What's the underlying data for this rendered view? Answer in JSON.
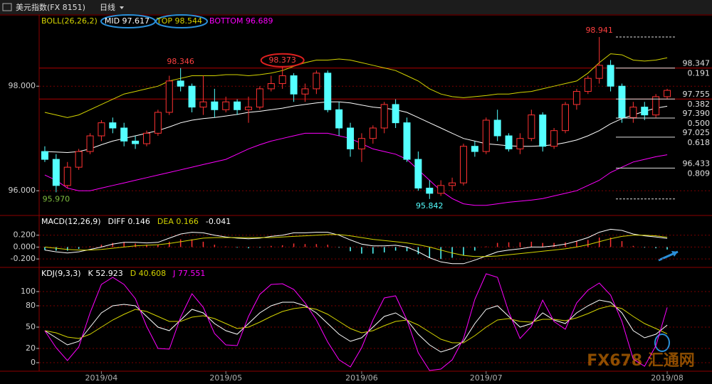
{
  "header": {
    "title": "美元指数(FX 8151)",
    "period": "日线"
  },
  "watermark": "FX678 汇通网",
  "chart_data": [
    {
      "type": "candlestick",
      "title": "BOLL(26,26,2)",
      "title_color": "#d4d400",
      "up_color": "#ff3232",
      "down_color": "#54ffff",
      "open": [
        96.75,
        96.6,
        96.1,
        96.45,
        96.75,
        97.05,
        97.3,
        97.2,
        96.95,
        96.9,
        97.1,
        97.5,
        98.1,
        98.0,
        97.6,
        97.7,
        97.55,
        97.7,
        97.55,
        97.6,
        97.95,
        98.05,
        98.2,
        97.85,
        97.95,
        98.25,
        97.55,
        97.2,
        96.8,
        97.0,
        97.2,
        97.65,
        97.3,
        96.6,
        96.05,
        95.95,
        96.1,
        96.15,
        96.85,
        96.75,
        97.35,
        97.05,
        96.8,
        97.0,
        97.45,
        96.85,
        97.15,
        97.65,
        97.9,
        98.15,
        98.4,
        98.0,
        97.4,
        97.6,
        97.45,
        97.8
      ],
      "high": [
        96.85,
        96.7,
        96.55,
        96.8,
        97.1,
        97.35,
        97.4,
        97.3,
        97.05,
        97.15,
        97.55,
        98.2,
        98.346,
        98.05,
        98.2,
        97.95,
        97.8,
        97.75,
        97.8,
        98.0,
        98.2,
        98.373,
        98.25,
        98.05,
        98.3,
        98.3,
        97.7,
        97.3,
        97.1,
        97.25,
        97.7,
        97.75,
        97.4,
        96.75,
        96.2,
        96.2,
        96.25,
        96.9,
        96.95,
        97.4,
        97.55,
        97.1,
        97.1,
        97.55,
        97.5,
        97.2,
        97.7,
        97.95,
        98.2,
        98.941,
        98.5,
        98.05,
        97.7,
        97.7,
        97.85,
        97.95
      ],
      "low": [
        96.55,
        95.97,
        96.05,
        96.4,
        96.7,
        96.95,
        97.1,
        96.85,
        96.8,
        96.85,
        97.05,
        97.45,
        97.9,
        97.5,
        97.45,
        97.4,
        97.5,
        97.45,
        97.3,
        97.55,
        97.9,
        97.95,
        97.7,
        97.7,
        97.85,
        97.5,
        97.05,
        96.65,
        96.55,
        96.9,
        97.1,
        97.2,
        96.55,
        96.0,
        95.842,
        95.9,
        96.0,
        96.1,
        96.65,
        96.7,
        96.95,
        96.75,
        96.7,
        96.95,
        96.75,
        96.8,
        97.1,
        97.55,
        97.85,
        98.05,
        97.9,
        97.3,
        97.3,
        97.35,
        97.4,
        97.75
      ],
      "close": [
        96.6,
        96.1,
        96.45,
        96.75,
        97.05,
        97.3,
        97.2,
        96.95,
        96.9,
        97.1,
        97.5,
        98.1,
        98.0,
        97.6,
        97.7,
        97.55,
        97.7,
        97.55,
        97.6,
        97.95,
        98.05,
        98.2,
        97.85,
        97.95,
        98.25,
        97.55,
        97.2,
        96.8,
        97.0,
        97.2,
        97.65,
        97.3,
        96.6,
        96.05,
        95.95,
        96.1,
        96.15,
        96.85,
        96.75,
        97.35,
        97.05,
        96.8,
        97.0,
        97.45,
        96.85,
        97.15,
        97.65,
        97.9,
        98.15,
        98.4,
        98.0,
        97.4,
        97.6,
        97.45,
        97.8,
        97.92
      ],
      "series": [
        {
          "name": "MID 97.617",
          "color": "#ffffff",
          "values": [
            96.75,
            96.74,
            96.73,
            96.75,
            96.8,
            96.88,
            96.95,
            97.0,
            97.05,
            97.1,
            97.15,
            97.22,
            97.3,
            97.35,
            97.38,
            97.4,
            97.43,
            97.46,
            97.5,
            97.52,
            97.55,
            97.58,
            97.62,
            97.65,
            97.68,
            97.7,
            97.7,
            97.68,
            97.64,
            97.6,
            97.58,
            97.55,
            97.5,
            97.4,
            97.3,
            97.2,
            97.1,
            97.0,
            96.95,
            96.9,
            96.88,
            96.86,
            96.85,
            96.85,
            96.86,
            96.88,
            96.92,
            96.97,
            97.05,
            97.15,
            97.28,
            97.38,
            97.45,
            97.52,
            97.58,
            97.617
          ]
        },
        {
          "name": "TOP 98.544",
          "color": "#d4d400",
          "values": [
            97.5,
            97.45,
            97.4,
            97.45,
            97.55,
            97.65,
            97.75,
            97.85,
            97.9,
            97.95,
            98.0,
            98.1,
            98.15,
            98.2,
            98.2,
            98.2,
            98.22,
            98.22,
            98.2,
            98.22,
            98.25,
            98.3,
            98.38,
            98.45,
            98.5,
            98.5,
            98.52,
            98.5,
            98.45,
            98.4,
            98.35,
            98.3,
            98.2,
            98.1,
            97.95,
            97.85,
            97.8,
            97.78,
            97.8,
            97.82,
            97.85,
            97.85,
            97.88,
            97.9,
            97.95,
            98.0,
            98.05,
            98.1,
            98.25,
            98.45,
            98.62,
            98.6,
            98.5,
            98.48,
            98.5,
            98.544
          ]
        },
        {
          "name": "BOTTOM 96.689",
          "color": "#ff00ff",
          "values": [
            96.3,
            96.2,
            96.05,
            96.0,
            96.0,
            96.05,
            96.1,
            96.15,
            96.2,
            96.25,
            96.3,
            96.35,
            96.4,
            96.45,
            96.5,
            96.55,
            96.6,
            96.7,
            96.8,
            96.88,
            96.95,
            97.0,
            97.05,
            97.1,
            97.1,
            97.1,
            97.05,
            97.0,
            96.9,
            96.8,
            96.75,
            96.7,
            96.6,
            96.4,
            96.2,
            96.0,
            95.85,
            95.75,
            95.72,
            95.72,
            95.75,
            95.78,
            95.8,
            95.82,
            95.85,
            95.9,
            95.95,
            96.0,
            96.1,
            96.2,
            96.35,
            96.45,
            96.55,
            96.6,
            96.65,
            96.689
          ]
        }
      ],
      "ylim": [
        95.54,
        99.35
      ],
      "yticks": [
        {
          "value": 96,
          "label": "96.000"
        },
        {
          "value": 98,
          "label": "98.000"
        }
      ],
      "grid": true,
      "annotations": [
        {
          "value": 98.346,
          "label": "98.346",
          "at": "high",
          "color": "#ff4040"
        },
        {
          "value": 98.373,
          "label": "98.373",
          "at": "high",
          "color": "#ff4040"
        },
        {
          "value": 98.941,
          "label": "98.941",
          "at": "high",
          "color": "#ff4040"
        },
        {
          "value": 95.842,
          "label": "95.842",
          "at": "low",
          "color": "#54ffff"
        },
        {
          "value": 95.97,
          "label": "95.970",
          "at": "low",
          "color": "#7fbf3f"
        }
      ],
      "reference_lines": [
        98.347,
        97.755
      ],
      "levels": [
        {
          "value": 98.941
        },
        {
          "value": 98.347,
          "label": "98.347",
          "ratio": "0.191"
        },
        {
          "value": 97.755,
          "label": "97.755",
          "ratio": "0.382"
        },
        {
          "value": 97.39,
          "label": "97.390",
          "ratio": "0.500"
        },
        {
          "value": 97.025,
          "label": "97.025",
          "ratio": "0.618"
        },
        {
          "value": 96.433,
          "label": "96.433",
          "ratio": "0.809"
        },
        {
          "value": 95.842
        }
      ]
    },
    {
      "type": "combo",
      "title": "MACD(12,26,9)",
      "title_color": "#ffffff",
      "up_color": "#ff3232",
      "down_color": "#54ffff",
      "series": [
        {
          "name": "DIFF 0.146",
          "type": "line",
          "color": "#ffffff",
          "values": [
            -0.05,
            -0.08,
            -0.1,
            -0.08,
            -0.04,
            0.0,
            0.05,
            0.08,
            0.08,
            0.07,
            0.08,
            0.15,
            0.22,
            0.25,
            0.24,
            0.2,
            0.17,
            0.15,
            0.14,
            0.15,
            0.18,
            0.2,
            0.24,
            0.24,
            0.25,
            0.25,
            0.2,
            0.12,
            0.05,
            0.02,
            0.02,
            0.03,
            0.0,
            -0.08,
            -0.18,
            -0.25,
            -0.28,
            -0.28,
            -0.22,
            -0.15,
            -0.08,
            -0.05,
            -0.03,
            0.0,
            0.0,
            0.02,
            0.05,
            0.1,
            0.16,
            0.25,
            0.3,
            0.28,
            0.22,
            0.19,
            0.17,
            0.146
          ]
        },
        {
          "name": "DEA 0.166",
          "type": "line",
          "color": "#d4d400",
          "values": [
            0.0,
            -0.02,
            -0.04,
            -0.05,
            -0.05,
            -0.04,
            -0.02,
            0.0,
            0.02,
            0.03,
            0.04,
            0.06,
            0.09,
            0.12,
            0.15,
            0.16,
            0.16,
            0.16,
            0.16,
            0.16,
            0.16,
            0.17,
            0.18,
            0.19,
            0.2,
            0.21,
            0.21,
            0.19,
            0.16,
            0.13,
            0.11,
            0.09,
            0.07,
            0.04,
            0.0,
            -0.05,
            -0.1,
            -0.14,
            -0.16,
            -0.16,
            -0.15,
            -0.13,
            -0.11,
            -0.09,
            -0.07,
            -0.05,
            -0.03,
            0.0,
            0.04,
            0.09,
            0.14,
            0.18,
            0.2,
            0.2,
            0.19,
            0.166
          ]
        },
        {
          "name": "-0.041",
          "type": "bar",
          "color": "#ffffff",
          "values": [
            -0.05,
            -0.06,
            -0.06,
            -0.03,
            0.01,
            0.04,
            0.07,
            0.08,
            0.06,
            0.04,
            0.04,
            0.09,
            0.13,
            0.13,
            0.09,
            0.04,
            0.01,
            -0.01,
            -0.02,
            -0.01,
            0.02,
            0.03,
            0.06,
            0.05,
            0.05,
            0.04,
            -0.01,
            -0.07,
            -0.11,
            -0.11,
            -0.09,
            -0.06,
            -0.07,
            -0.12,
            -0.18,
            -0.2,
            -0.18,
            -0.14,
            -0.06,
            0.01,
            0.07,
            0.08,
            0.08,
            0.09,
            0.07,
            0.07,
            0.08,
            0.1,
            0.12,
            0.16,
            0.16,
            0.1,
            0.02,
            -0.01,
            -0.02,
            -0.041
          ]
        }
      ],
      "ylim": [
        -0.33,
        0.52
      ],
      "yticks": [
        {
          "value": 0.2,
          "label": "0.200"
        },
        {
          "value": 0,
          "label": "0.000"
        },
        {
          "value": -0.2,
          "label": "-0.200"
        }
      ],
      "grid": true
    },
    {
      "type": "line",
      "title": "KDJ(9,3,3)",
      "title_color": "#ffffff",
      "categories": [
        null,
        null,
        null,
        null,
        null,
        "2019/04",
        null,
        null,
        null,
        null,
        null,
        null,
        null,
        null,
        null,
        null,
        "2019/05",
        null,
        null,
        null,
        null,
        null,
        null,
        null,
        null,
        null,
        null,
        null,
        "2019/06",
        null,
        null,
        null,
        null,
        null,
        null,
        null,
        null,
        null,
        null,
        "2019/07",
        null,
        null,
        null,
        null,
        null,
        null,
        null,
        null,
        null,
        null,
        null,
        null,
        null,
        null,
        null,
        "2019/08"
      ],
      "series": [
        {
          "name": "K 52.923",
          "color": "#ffffff",
          "values": [
            45,
            35,
            25,
            30,
            50,
            70,
            80,
            82,
            80,
            65,
            50,
            45,
            60,
            75,
            70,
            55,
            45,
            40,
            55,
            70,
            80,
            85,
            85,
            80,
            70,
            55,
            40,
            30,
            35,
            50,
            65,
            70,
            60,
            40,
            25,
            15,
            20,
            30,
            55,
            75,
            80,
            65,
            50,
            55,
            70,
            60,
            55,
            70,
            80,
            88,
            85,
            70,
            45,
            35,
            40,
            52.923
          ]
        },
        {
          "name": "D 40.608",
          "color": "#d4d400",
          "values": [
            45,
            42,
            36,
            34,
            40,
            50,
            60,
            68,
            75,
            72,
            65,
            58,
            58,
            64,
            66,
            62,
            55,
            48,
            50,
            57,
            65,
            72,
            76,
            78,
            75,
            68,
            58,
            48,
            42,
            45,
            52,
            58,
            60,
            53,
            43,
            33,
            28,
            28,
            38,
            50,
            60,
            62,
            58,
            57,
            61,
            61,
            59,
            63,
            69,
            76,
            80,
            76,
            65,
            55,
            48,
            40.608
          ]
        },
        {
          "name": "J 77.551",
          "color": "#ff00ff",
          "values": [
            45,
            21,
            3,
            22,
            70,
            110,
            120,
            110,
            90,
            51,
            20,
            19,
            64,
            97,
            78,
            41,
            25,
            24,
            65,
            96,
            110,
            111,
            103,
            84,
            60,
            29,
            4,
            -6,
            21,
            60,
            91,
            94,
            60,
            14,
            -11,
            -9,
            4,
            34,
            89,
            125,
            120,
            71,
            34,
            51,
            88,
            58,
            47,
            84,
            102,
            112,
            95,
            58,
            5,
            -5,
            24,
            77.551
          ]
        }
      ],
      "ylim": [
        -11,
        133
      ],
      "yticks": [
        0,
        20,
        50,
        80,
        100
      ],
      "grid": true
    }
  ]
}
